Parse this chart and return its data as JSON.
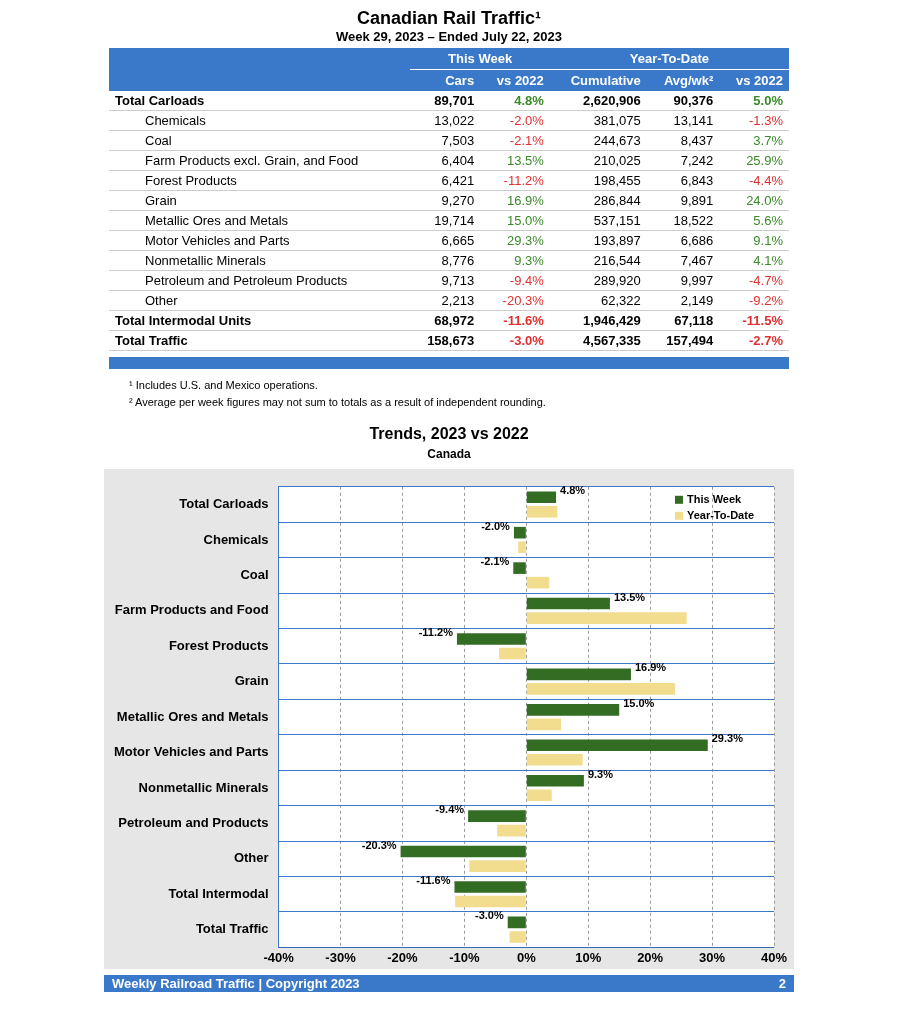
{
  "chart_data": [
    {
      "type": "other",
      "title": "Canadian Rail Traffic¹",
      "subtitle": "Week 29, 2023 – Ended July 22, 2023",
      "categories": [
        "Total Carloads",
        "Chemicals",
        "Coal",
        "Farm Products excl. Grain, and Food",
        "Forest Products",
        "Grain",
        "Metallic Ores and Metals",
        "Motor Vehicles and Parts",
        "Nonmetallic Minerals",
        "Petroleum and Petroleum Products",
        "Other",
        "Total Intermodal Units",
        "Total Traffic"
      ],
      "series": [
        {
          "name": "Cars",
          "values": [
            89701,
            13022,
            7503,
            6404,
            6421,
            9270,
            19714,
            6665,
            8776,
            9713,
            2213,
            68972,
            158673
          ],
          "value_labels": [
            "89,701",
            "13,022",
            "7,503",
            "6,404",
            "6,421",
            "9,270",
            "19,714",
            "6,665",
            "8,776",
            "9,713",
            "2,213",
            "68,972",
            "158,673"
          ]
        },
        {
          "name": "vs 2022",
          "values": [
            4.8,
            -2.0,
            -2.1,
            13.5,
            -11.2,
            16.9,
            15.0,
            29.3,
            9.3,
            -9.4,
            -20.3,
            -11.6,
            -3.0
          ],
          "value_labels": [
            "4.8%",
            "-2.0%",
            "-2.1%",
            "13.5%",
            "-11.2%",
            "16.9%",
            "15.0%",
            "29.3%",
            "9.3%",
            "-9.4%",
            "-20.3%",
            "-11.6%",
            "-3.0%"
          ]
        },
        {
          "name": "Cumulative",
          "values": [
            2620906,
            381075,
            244673,
            210025,
            198455,
            286844,
            537151,
            193897,
            216544,
            289920,
            62322,
            1946429,
            4567335
          ],
          "value_labels": [
            "2,620,906",
            "381,075",
            "244,673",
            "210,025",
            "198,455",
            "286,844",
            "537,151",
            "193,897",
            "216,544",
            "289,920",
            "62,322",
            "1,946,429",
            "4,567,335"
          ]
        },
        {
          "name": "Avg/wk²",
          "values": [
            90376,
            13141,
            8437,
            7242,
            6843,
            9891,
            18522,
            6686,
            7467,
            9997,
            2149,
            67118,
            157494
          ],
          "value_labels": [
            "90,376",
            "13,141",
            "8,437",
            "7,242",
            "6,843",
            "9,891",
            "18,522",
            "6,686",
            "7,467",
            "9,997",
            "2,149",
            "67,118",
            "157,494"
          ]
        },
        {
          "name": "vs 2022",
          "values": [
            5.0,
            -1.3,
            3.7,
            25.9,
            -4.4,
            24.0,
            5.6,
            9.1,
            4.1,
            -4.7,
            -9.2,
            -11.5,
            -2.7
          ],
          "value_labels": [
            "5.0%",
            "-1.3%",
            "3.7%",
            "25.9%",
            "-4.4%",
            "24.0%",
            "5.6%",
            "9.1%",
            "4.1%",
            "-4.7%",
            "-9.2%",
            "-11.5%",
            "-2.7%"
          ]
        }
      ],
      "annotations": [
        "This Week",
        "Year-To-Date",
        "¹ Includes U.S. and Mexico operations.",
        "² Average per week figures may not sum to totals as a result of independent rounding."
      ]
    },
    {
      "type": "bar",
      "orientation": "horizontal",
      "title": "Trends, 2023 vs 2022",
      "subtitle": "Canada",
      "categories": [
        "Total Carloads",
        "Chemicals",
        "Coal",
        "Farm Products and Food",
        "Forest Products",
        "Grain",
        "Metallic Ores and Metals",
        "Motor Vehicles and Parts",
        "Nonmetallic Minerals",
        "Petroleum and Products",
        "Other",
        "Total Intermodal",
        "Total Traffic"
      ],
      "series": [
        {
          "name": "This Week",
          "color": "#336d23",
          "values": [
            4.8,
            -2.0,
            -2.1,
            13.5,
            -11.2,
            16.9,
            15.0,
            29.3,
            9.3,
            -9.4,
            -20.3,
            -11.6,
            -3.0
          ],
          "value_labels": [
            "4.8%",
            "-2.0%",
            "-2.1%",
            "13.5%",
            "-11.2%",
            "16.9%",
            "15.0%",
            "29.3%",
            "9.3%",
            "-9.4%",
            "-20.3%",
            "-11.6%",
            "-3.0%"
          ]
        },
        {
          "name": "Year-To-Date",
          "color": "#f2dc8e",
          "values": [
            5.0,
            -1.3,
            3.7,
            25.9,
            -4.4,
            24.0,
            5.6,
            9.1,
            4.1,
            -4.7,
            -9.2,
            -11.5,
            -2.7
          ]
        }
      ],
      "xlim": [
        -40,
        40
      ],
      "xticks": [
        {
          "value": -40,
          "label": "-40%"
        },
        {
          "value": -30,
          "label": "-30%"
        },
        {
          "value": -20,
          "label": "-20%"
        },
        {
          "value": -10,
          "label": "-10%"
        },
        {
          "value": 0,
          "label": "0%"
        },
        {
          "value": 10,
          "label": "10%"
        },
        {
          "value": 20,
          "label": "20%"
        },
        {
          "value": 30,
          "label": "30%"
        },
        {
          "value": 40,
          "label": "40%"
        }
      ],
      "grid": true,
      "legend": "top right",
      "annotations": [
        "Weekly Railroad Traffic | Copyright 2023",
        "2"
      ]
    }
  ]
}
